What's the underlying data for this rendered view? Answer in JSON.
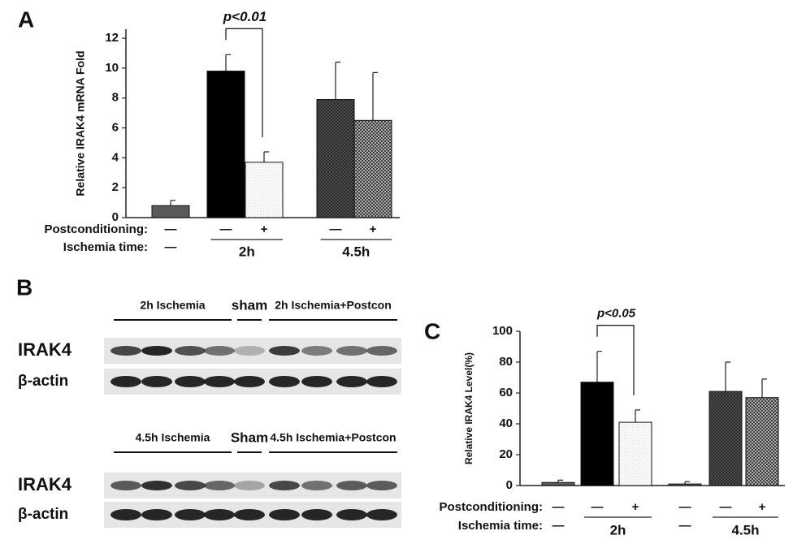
{
  "chart_data": [
    {
      "type": "bar",
      "panel": "A",
      "ylabel": "Relative IRAK4 mRNA Fold",
      "ylim": [
        0,
        12.6
      ],
      "yticks": [
        0,
        2,
        4,
        6,
        8,
        10,
        12
      ],
      "values": [
        0.8,
        9.8,
        3.7,
        7.9,
        6.5
      ],
      "errors": [
        0.35,
        1.1,
        0.7,
        2.5,
        3.2
      ],
      "fills": [
        "solid",
        "solid",
        "dots",
        "crosshatch",
        "crosshatch"
      ],
      "colors": [
        "#5a5a5a",
        "#000000",
        "#d9d9d9",
        "#555555",
        "#c8c8c8"
      ],
      "row_labels": [
        "Postconditioning:",
        "Ischemia time:"
      ],
      "postconditioning": [
        "—",
        "—",
        "+",
        "—",
        "+"
      ],
      "ischemia_time": [
        "—",
        "2h",
        "2h",
        "4.5h",
        "4.5h"
      ],
      "significance": "p<0.01"
    },
    {
      "type": "bar",
      "panel": "C",
      "ylabel": "Relative IRAK4 Level(%)",
      "ylim": [
        0,
        100
      ],
      "yticks": [
        0,
        20,
        40,
        60,
        80,
        100
      ],
      "values": [
        2,
        67,
        41,
        1,
        61,
        57
      ],
      "errors": [
        1.5,
        20,
        8,
        1.5,
        19,
        12
      ],
      "fills": [
        "solid",
        "solid",
        "dots",
        "solid",
        "crosshatch",
        "crosshatch"
      ],
      "colors": [
        "#5a5a5a",
        "#000000",
        "#d9d9d9",
        "#5a5a5a",
        "#555555",
        "#c8c8c8"
      ],
      "row_labels": [
        "Postconditioning:",
        "Ischemia time:"
      ],
      "postconditioning": [
        "—",
        "—",
        "+",
        "—",
        "—",
        "+"
      ],
      "ischemia_time": [
        "—",
        "2h",
        "2h",
        "—",
        "4.5h",
        "4.5h"
      ],
      "significance": "p<0.05"
    }
  ],
  "blots": {
    "panel": "B",
    "blocks": [
      {
        "headers": [
          "2h Ischemia",
          "sham",
          "2h Ischemia+Postcon"
        ],
        "rows": [
          "IRAK4",
          "β-actin"
        ]
      },
      {
        "headers": [
          "4.5h Ischemia",
          "Sham",
          "4.5h Ischemia+Postcon"
        ],
        "rows": [
          "IRAK4",
          "β-actin"
        ]
      }
    ]
  }
}
